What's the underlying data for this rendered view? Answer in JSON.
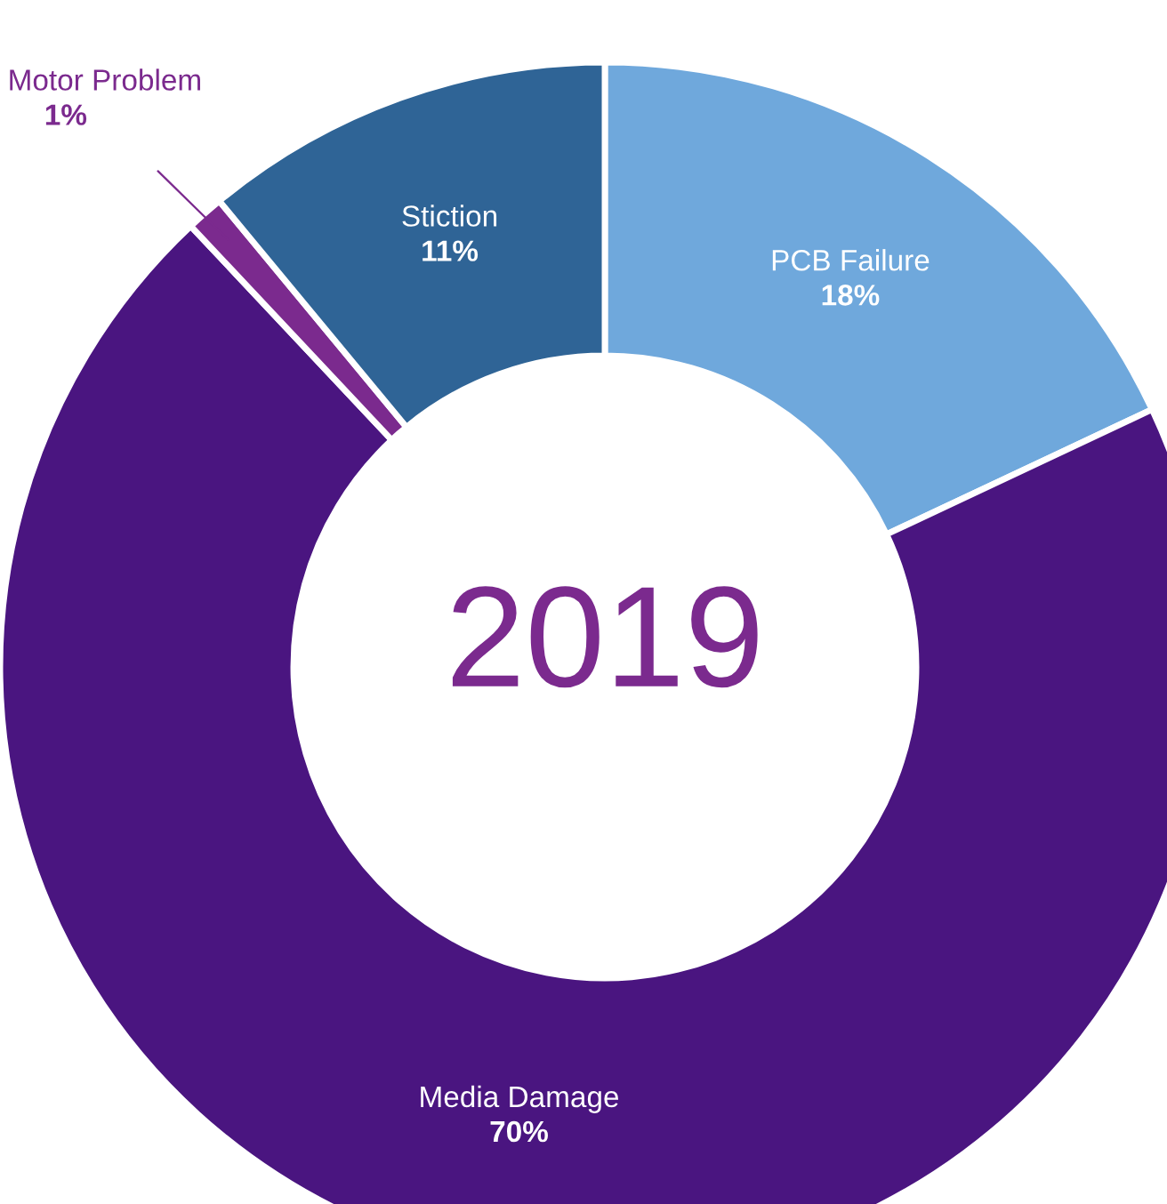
{
  "chart_data": {
    "type": "donut",
    "title": "2019",
    "categories": [
      "PCB Failure",
      "Media Damage",
      "Motor Problem",
      "Stiction"
    ],
    "values": [
      18,
      70,
      1,
      11
    ],
    "value_labels": [
      "18%",
      "70%",
      "1%",
      "11%"
    ],
    "colors": [
      "#6fa8dc",
      "#4a1580",
      "#7b2a8e",
      "#2f6496"
    ]
  }
}
